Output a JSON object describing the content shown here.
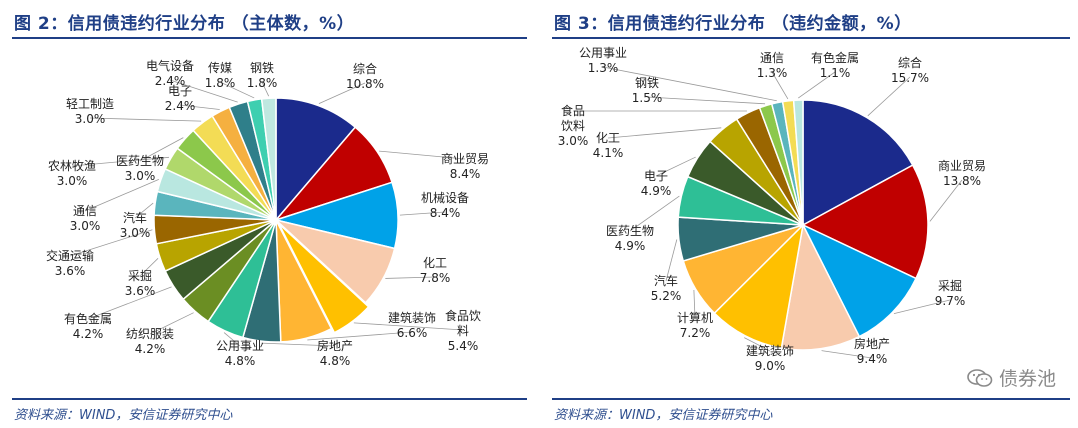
{
  "chart_data": [
    {
      "type": "pie",
      "title": "图 2：信用债违约行业分布 （主体数，%）",
      "source": "资料来源：WIND，安信证券研究中心",
      "categories": [
        "综合",
        "商业贸易",
        "机械设备",
        "化工",
        "食品饮料",
        "建筑装饰",
        "房地产",
        "公用事业",
        "纺织服装",
        "有色金属",
        "采掘",
        "交通运输",
        "汽车",
        "通信",
        "农林牧渔",
        "医药生物",
        "轻工制造",
        "电子",
        "电气设备",
        "传媒",
        "钢铁"
      ],
      "values": [
        10.8,
        8.4,
        8.4,
        7.8,
        5.4,
        6.6,
        4.8,
        4.8,
        4.2,
        4.2,
        3.6,
        3.6,
        3.0,
        3.0,
        3.0,
        3.0,
        3.0,
        2.4,
        2.4,
        1.8,
        1.8
      ],
      "labels": [
        {
          "name": "综合",
          "value": "10.8%"
        },
        {
          "name": "商业贸易",
          "value": "8.4%"
        },
        {
          "name": "机械设备",
          "value": "8.4%"
        },
        {
          "name": "化工",
          "value": "7.8%"
        },
        {
          "name": "食品饮\n料",
          "value": "5.4%"
        },
        {
          "name": "建筑装饰",
          "value": "6.6%"
        },
        {
          "name": "房地产",
          "value": "4.8%"
        },
        {
          "name": "公用事业",
          "value": "4.8%"
        },
        {
          "name": "纺织服装",
          "value": "4.2%"
        },
        {
          "name": "有色金属",
          "value": "4.2%"
        },
        {
          "name": "采掘",
          "value": "3.6%"
        },
        {
          "name": "交通运输",
          "value": "3.6%"
        },
        {
          "name": "汽车",
          "value": "3.0%"
        },
        {
          "name": "通信",
          "value": "3.0%"
        },
        {
          "name": "农林牧渔",
          "value": "3.0%"
        },
        {
          "name": "医药生物",
          "value": "3.0%"
        },
        {
          "name": "轻工制造",
          "value": "3.0%"
        },
        {
          "name": "电子",
          "value": "2.4%"
        },
        {
          "name": "电气设备",
          "value": "2.4%"
        },
        {
          "name": "传媒",
          "value": "1.8%"
        },
        {
          "name": "钢铁",
          "value": "1.8%"
        }
      ],
      "colors": [
        "#1b2a8c",
        "#c00000",
        "#00a2e8",
        "#f8cbad",
        "#ffc000",
        "#ffb533",
        "#2f6e75",
        "#2ebf96",
        "#6b8e23",
        "#3a5a2a",
        "#b8a400",
        "#9a6600",
        "#5ab5bd",
        "#b9e7e0",
        "#b0d86b",
        "#8cc84b",
        "#f3dc55",
        "#f5b040",
        "#2f7f8a",
        "#3ecfb0",
        "#bfe8e0"
      ]
    },
    {
      "type": "pie",
      "title": "图 3：信用债违约行业分布 （违约金额，%）",
      "source": "资料来源：WIND，安信证券研究中心",
      "categories": [
        "综合",
        "商业贸易",
        "采掘",
        "房地产",
        "建筑装饰",
        "计算机",
        "汽车",
        "医药生物",
        "电子",
        "化工",
        "食品饮料",
        "钢铁",
        "公用事业",
        "通信",
        "有色金属"
      ],
      "values": [
        15.7,
        13.8,
        9.7,
        9.4,
        9.0,
        7.2,
        5.2,
        4.9,
        4.9,
        4.1,
        3.0,
        1.5,
        1.3,
        1.3,
        1.1
      ],
      "labels": [
        {
          "name": "综合",
          "value": "15.7%"
        },
        {
          "name": "商业贸易",
          "value": "13.8%"
        },
        {
          "name": "采掘",
          "value": "9.7%"
        },
        {
          "name": "房地产",
          "value": "9.4%"
        },
        {
          "name": "建筑装饰",
          "value": "9.0%"
        },
        {
          "name": "计算机",
          "value": "7.2%"
        },
        {
          "name": "汽车",
          "value": "5.2%"
        },
        {
          "name": "医药生物",
          "value": "4.9%"
        },
        {
          "name": "电子",
          "value": "4.9%"
        },
        {
          "name": "化工",
          "value": "4.1%"
        },
        {
          "name": "食品\n饮料",
          "value": "3.0%"
        },
        {
          "name": "钢铁",
          "value": "1.5%"
        },
        {
          "name": "公用事业",
          "value": "1.3%"
        },
        {
          "name": "通信",
          "value": "1.3%"
        },
        {
          "name": "有色金属",
          "value": "1.1%"
        }
      ],
      "colors": [
        "#1b2a8c",
        "#c00000",
        "#00a2e8",
        "#f8cbad",
        "#ffc000",
        "#ffb533",
        "#2f6e75",
        "#2ebf96",
        "#3a5a2a",
        "#b8a400",
        "#9a6600",
        "#8cc84b",
        "#5ab5bd",
        "#f3dc55",
        "#b9e7e0"
      ]
    }
  ],
  "watermark": "债券池"
}
